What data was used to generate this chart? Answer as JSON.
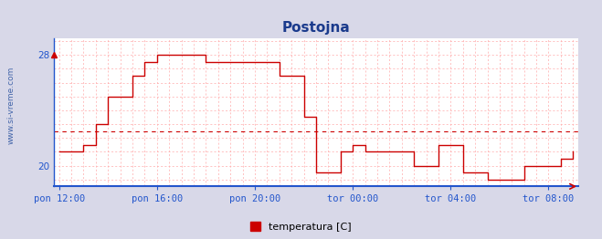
{
  "title": "Postojna",
  "title_color": "#1a3a8c",
  "xlabel_labels": [
    "pon 12:00",
    "pon 16:00",
    "pon 20:00",
    "tor 00:00",
    "tor 04:00",
    "tor 08:00"
  ],
  "x_tick_positions": [
    0,
    4,
    8,
    12,
    16,
    20
  ],
  "ylim_bottom": 18.5,
  "ylim_top": 29.2,
  "ytick_positions": [
    20,
    28
  ],
  "ytick_labels": [
    "20",
    "28"
  ],
  "avg_line_y": 22.5,
  "line_color": "#cc0000",
  "avg_line_color": "#cc0000",
  "grid_color": "#ffaaaa",
  "fig_bg_color": "#d8d8e8",
  "plot_bg_color": "#ffffff",
  "legend_label": "temperatura [C]",
  "legend_color": "#cc0000",
  "watermark": "www.si-vreme.com",
  "watermark_color": "#4466aa",
  "axis_color": "#2255cc",
  "tick_label_color": "#2255cc",
  "time_points": [
    0,
    0.5,
    1.0,
    1.5,
    2.0,
    2.5,
    3.0,
    3.5,
    4.0,
    4.5,
    5.0,
    5.5,
    6.0,
    6.5,
    7.0,
    7.5,
    8.0,
    8.5,
    9.0,
    9.5,
    10.0,
    10.5,
    11.0,
    11.5,
    12.0,
    12.5,
    13.0,
    13.5,
    14.0,
    14.5,
    15.0,
    15.5,
    16.0,
    16.5,
    17.0,
    17.5,
    18.0,
    18.5,
    19.0,
    19.5,
    20.0,
    20.5,
    21.0
  ],
  "temp_values": [
    21.0,
    21.0,
    21.5,
    23.0,
    25.0,
    25.0,
    26.5,
    27.5,
    28.0,
    28.0,
    28.0,
    28.0,
    27.5,
    27.5,
    27.5,
    27.5,
    27.5,
    27.5,
    26.5,
    26.5,
    23.5,
    19.5,
    19.5,
    21.0,
    21.5,
    21.0,
    21.0,
    21.0,
    21.0,
    20.0,
    20.0,
    21.5,
    21.5,
    19.5,
    19.5,
    19.0,
    19.0,
    19.0,
    20.0,
    20.0,
    20.0,
    20.5,
    21.0
  ]
}
